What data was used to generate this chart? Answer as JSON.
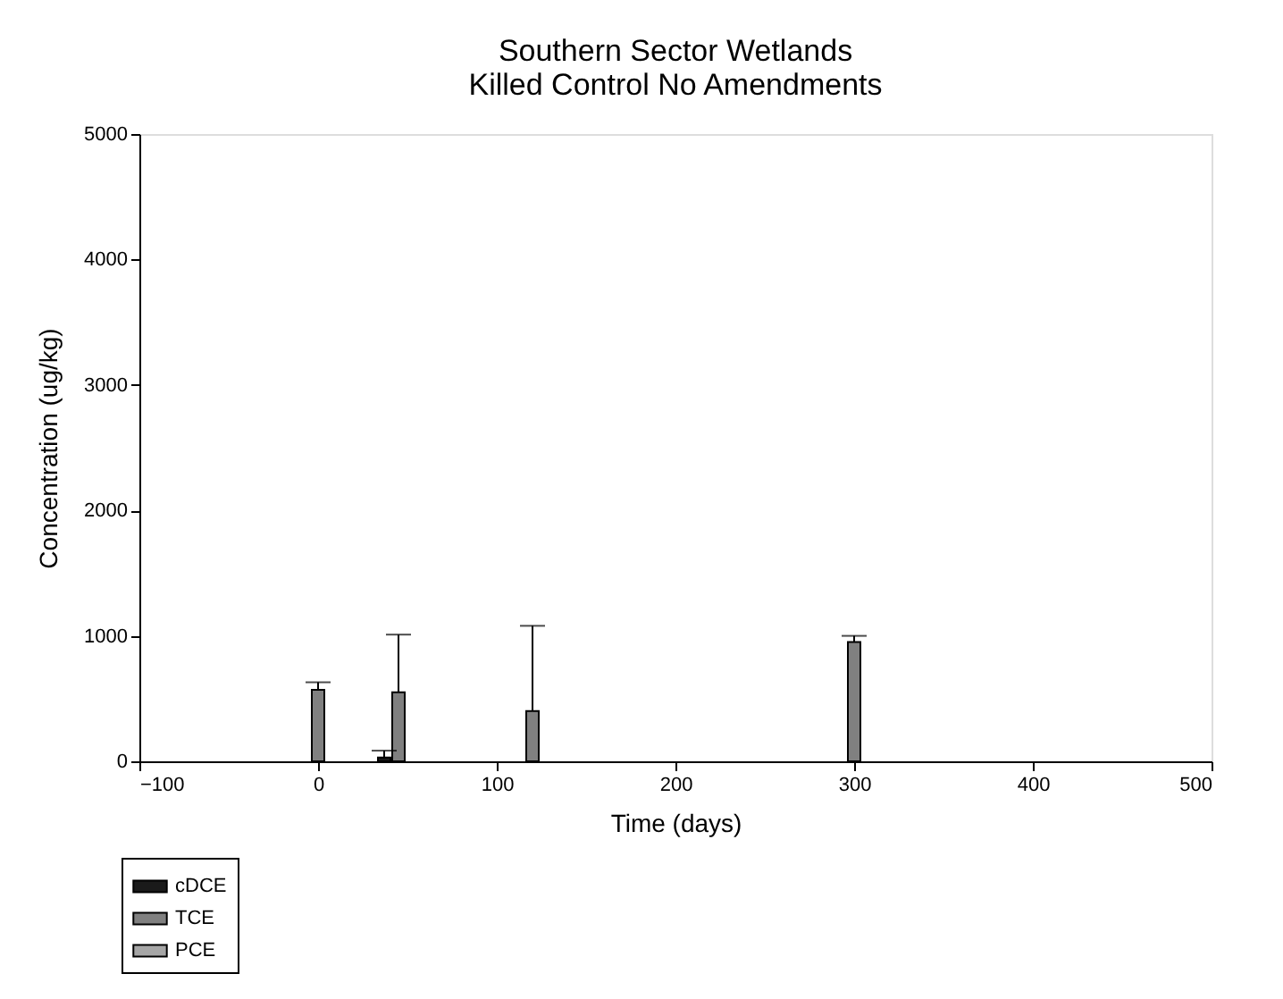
{
  "chart_data": {
    "type": "bar",
    "title": "Southern Sector Wetlands\nKilled Control  No Amendments",
    "xlabel": "Time (days)",
    "ylabel": "Concentration (ug/kg)",
    "series": [
      {
        "name": "cDCE",
        "color": "#1a1a1a",
        "x": [
          37
        ],
        "values": [
          30
        ],
        "errors": [
          [
            30,
            85
          ]
        ]
      },
      {
        "name": "TCE",
        "color": "#808080",
        "x": [
          0,
          45,
          120,
          300
        ],
        "values": [
          570,
          550,
          400,
          950
        ],
        "errors": [
          [
            570,
            630
          ],
          [
            550,
            1010
          ],
          [
            400,
            1080
          ],
          [
            950,
            1000
          ]
        ]
      },
      {
        "name": "PCE",
        "color": "#a6a6a6"
      }
    ],
    "xlim": [
      -100,
      500
    ],
    "xticks": [
      -100,
      0,
      100,
      200,
      300,
      400,
      500
    ],
    "ylim": [
      0,
      5000
    ],
    "yticks": [
      0,
      1000,
      2000,
      3000,
      4000,
      5000
    ],
    "grid": false,
    "legend": "bottom left"
  }
}
